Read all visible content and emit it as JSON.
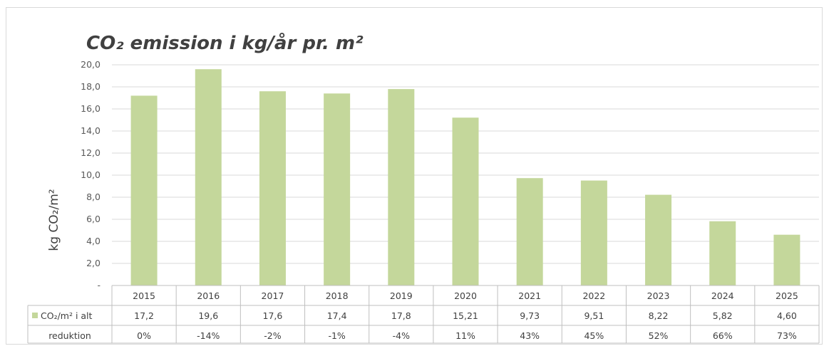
{
  "chart_data": {
    "type": "bar",
    "title": "CO₂ emission i kg/år pr. m²",
    "ylabel": "kg CO₂/m²",
    "ylim": [
      0,
      20
    ],
    "yticks": [
      "-",
      "2,0",
      "4,0",
      "6,0",
      "8,0",
      "10,0",
      "12,0",
      "14,0",
      "16,0",
      "18,0",
      "20,0"
    ],
    "categories": [
      "2015",
      "2016",
      "2017",
      "2018",
      "2019",
      "2020",
      "2021",
      "2022",
      "2023",
      "2024",
      "2025"
    ],
    "series": [
      {
        "name": "CO₂/m² i alt",
        "color": "#c4d79b",
        "values": [
          17.2,
          19.6,
          17.6,
          17.4,
          17.8,
          15.21,
          9.73,
          9.51,
          8.22,
          5.82,
          4.6
        ],
        "labels": [
          "17,2",
          "19,6",
          "17,6",
          "17,4",
          "17,8",
          "15,21",
          "9,73",
          "9,51",
          "8,22",
          "5,82",
          "4,60"
        ]
      }
    ],
    "table_rows": [
      {
        "label": "reduktion",
        "values": [
          "0%",
          "-14%",
          "-2%",
          "-1%",
          "-4%",
          "11%",
          "43%",
          "45%",
          "52%",
          "66%",
          "73%"
        ]
      }
    ],
    "grid": true,
    "legend": "data-table"
  }
}
